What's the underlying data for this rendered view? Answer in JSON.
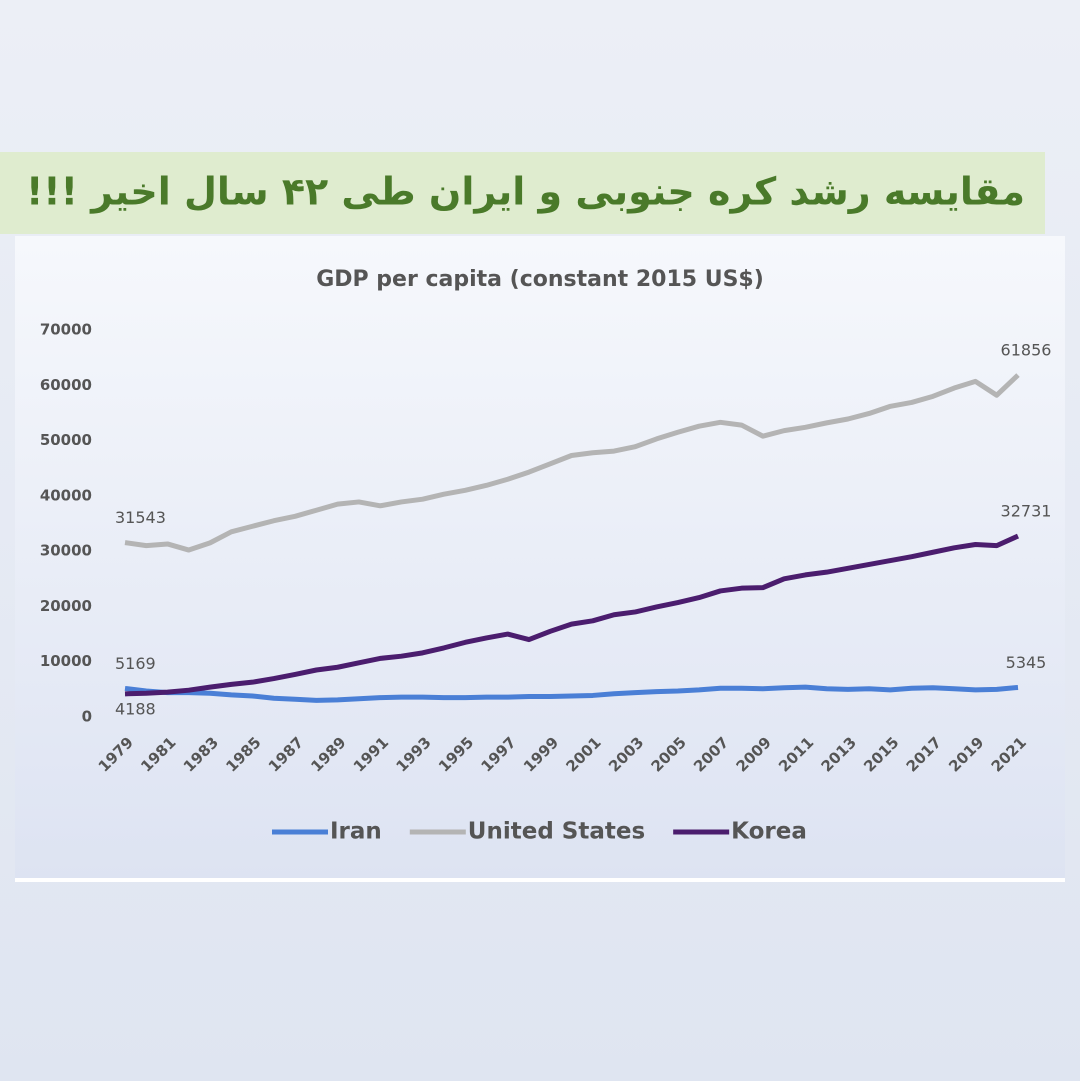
{
  "header": {
    "title": "مقایسه رشد کره جنوبی و ایران طی ۴۲ سال اخیر !!!"
  },
  "chart_data": {
    "type": "line",
    "title": "GDP per capita (constant 2015 US$)",
    "x": [
      1979,
      1980,
      1981,
      1982,
      1983,
      1984,
      1985,
      1986,
      1987,
      1988,
      1989,
      1990,
      1991,
      1992,
      1993,
      1994,
      1995,
      1996,
      1997,
      1998,
      1999,
      2000,
      2001,
      2002,
      2003,
      2004,
      2005,
      2006,
      2007,
      2008,
      2009,
      2010,
      2011,
      2012,
      2013,
      2014,
      2015,
      2016,
      2017,
      2018,
      2019,
      2020,
      2021
    ],
    "xlim": [
      1979,
      2021
    ],
    "xticks": [
      1979,
      1981,
      1983,
      1985,
      1987,
      1989,
      1991,
      1993,
      1995,
      1997,
      1999,
      2001,
      2003,
      2005,
      2007,
      2009,
      2011,
      2013,
      2015,
      2017,
      2019,
      2021
    ],
    "ylim": [
      0,
      70000
    ],
    "yticks": [
      0,
      10000,
      20000,
      30000,
      40000,
      50000,
      60000,
      70000
    ],
    "legend": "bottom",
    "series": [
      {
        "name": "Iran",
        "color": "#4a7fd6",
        "values": [
          5169,
          4700,
          4400,
          4400,
          4300,
          4000,
          3800,
          3400,
          3200,
          3000,
          3100,
          3300,
          3500,
          3600,
          3600,
          3500,
          3500,
          3600,
          3600,
          3700,
          3700,
          3800,
          3900,
          4200,
          4400,
          4600,
          4700,
          4900,
          5200,
          5200,
          5100,
          5300,
          5400,
          5100,
          5000,
          5100,
          4900,
          5200,
          5300,
          5100,
          4900,
          5000,
          5345
        ]
      },
      {
        "name": "United States",
        "color": "#b4b4b4",
        "values": [
          31543,
          31000,
          31300,
          30200,
          31500,
          33500,
          34500,
          35500,
          36300,
          37400,
          38500,
          38900,
          38200,
          38900,
          39400,
          40300,
          41000,
          41900,
          43000,
          44300,
          45800,
          47300,
          47800,
          48100,
          48900,
          50300,
          51500,
          52600,
          53300,
          52800,
          50800,
          51800,
          52400,
          53200,
          53900,
          54900,
          56200,
          56900,
          58000,
          59500,
          60700,
          58200,
          61856
        ]
      },
      {
        "name": "Korea",
        "color": "#4b1d6e",
        "values": [
          4188,
          4300,
          4500,
          4850,
          5400,
          5900,
          6300,
          6950,
          7700,
          8500,
          9000,
          9800,
          10600,
          11000,
          11600,
          12500,
          13500,
          14300,
          15000,
          14000,
          15500,
          16800,
          17400,
          18500,
          19000,
          19900,
          20700,
          21600,
          22800,
          23300,
          23400,
          25000,
          25700,
          26200,
          26900,
          27600,
          28300,
          29000,
          29800,
          30600,
          31200,
          31000,
          32731
        ]
      }
    ]
  }
}
